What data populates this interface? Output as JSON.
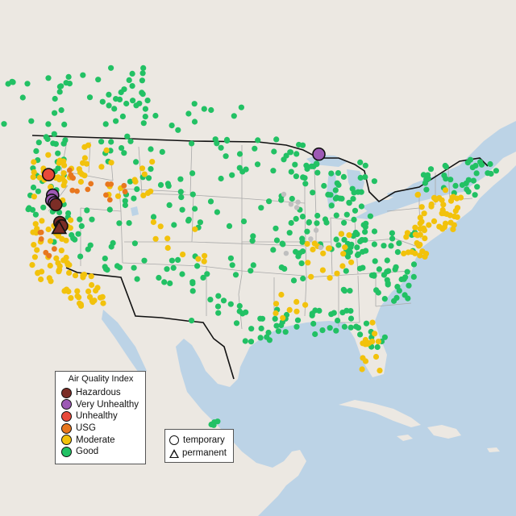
{
  "colors": {
    "water": "#bcd3e6",
    "land": "#ece8e2",
    "land_shade": "#e4dbd2",
    "state_border": "#a9a9a9",
    "country_border": "#111111",
    "hazardous": "#7b2d26",
    "very_unhealthy": "#9d59b5",
    "unhealthy": "#e8493a",
    "usg": "#e8771f",
    "moderate": "#f2c20c",
    "good": "#22c164",
    "no_data": "#bfbfbf"
  },
  "legend": {
    "title": "Air Quality Index",
    "items": [
      {
        "label": "Hazardous",
        "color": "#7b2d26"
      },
      {
        "label": "Very Unhealthy",
        "color": "#9d59b5"
      },
      {
        "label": "Unhealthy",
        "color": "#e8493a"
      },
      {
        "label": "USG",
        "color": "#e8771f"
      },
      {
        "label": "Moderate",
        "color": "#f2c20c"
      },
      {
        "label": "Good",
        "color": "#22c164"
      }
    ]
  },
  "shape_legend": {
    "temporary": "temporary",
    "permanent": "permanent"
  },
  "monitors": {
    "highlighted": [
      {
        "category": "unhealthy",
        "shape": "circle",
        "lon": -123.0,
        "lat": 44.6
      },
      {
        "category": "very_unhealthy",
        "shape": "circle",
        "lon": -89.8,
        "lat": 47.0
      },
      {
        "category": "very_unhealthy",
        "shape": "circle",
        "lon": -122.5,
        "lat": 42.2
      },
      {
        "category": "very_unhealthy",
        "shape": "circle",
        "lon": -122.6,
        "lat": 41.6
      },
      {
        "category": "very_unhealthy",
        "shape": "circle",
        "lon": -122.3,
        "lat": 41.3
      },
      {
        "category": "hazardous",
        "shape": "circle",
        "lon": -122.1,
        "lat": 41.1
      },
      {
        "category": "hazardous",
        "shape": "circle",
        "lon": -121.6,
        "lat": 39.0
      },
      {
        "category": "hazardous",
        "shape": "circle",
        "lon": -121.4,
        "lat": 38.6
      },
      {
        "category": "hazardous",
        "shape": "triangle",
        "lon": -121.7,
        "lat": 38.3
      }
    ]
  }
}
